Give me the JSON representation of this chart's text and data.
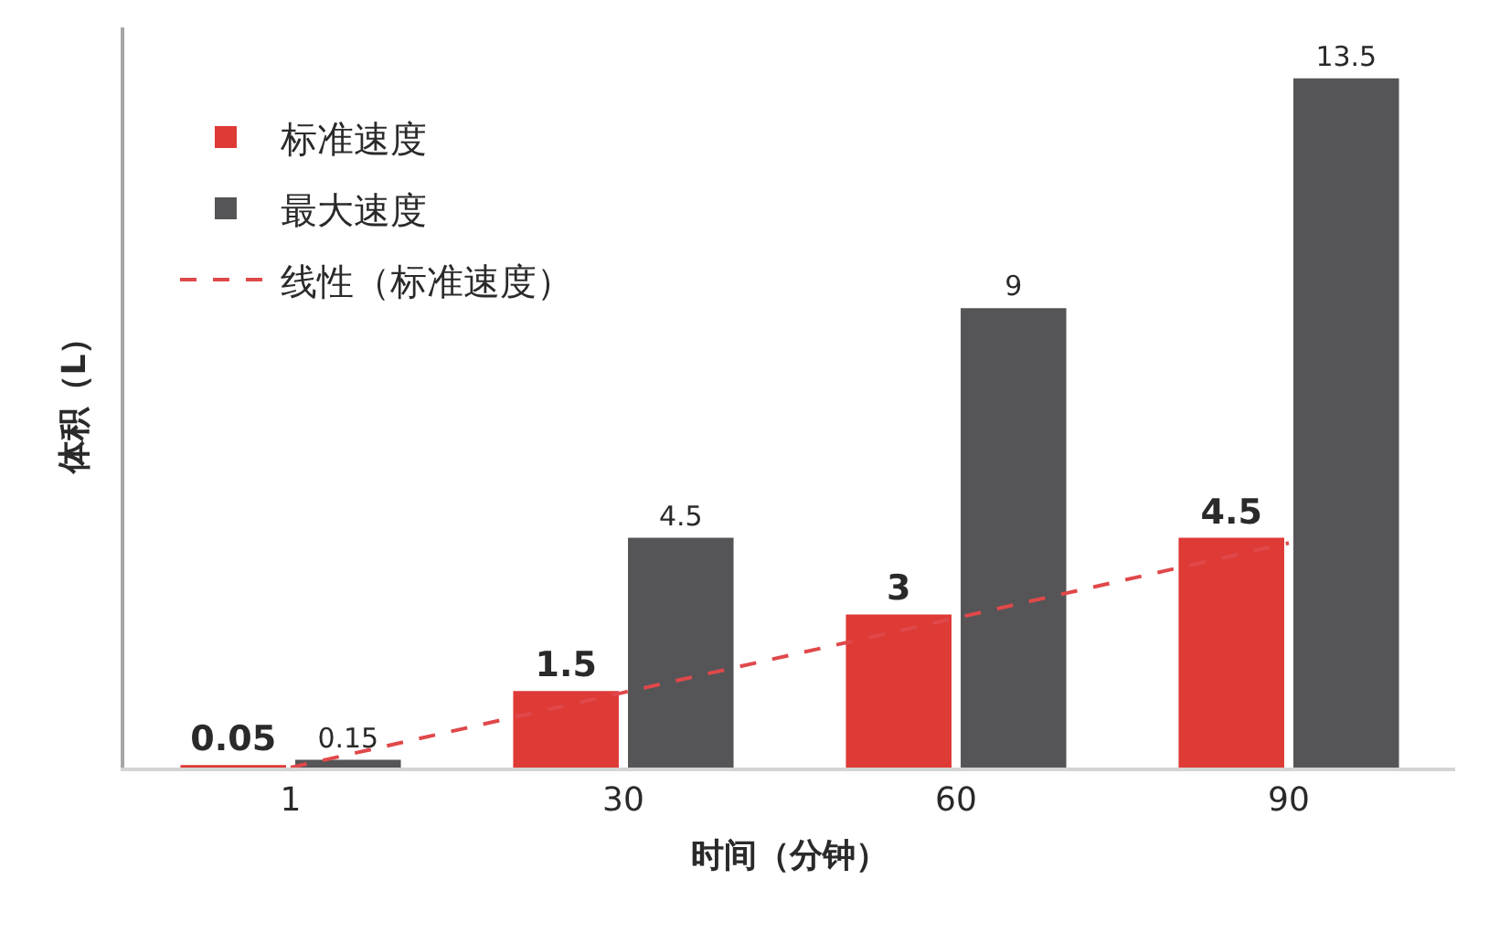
{
  "chart_data": {
    "type": "bar",
    "xlabel": "时间（分钟）",
    "ylabel": "体积（L）",
    "categories": [
      "1",
      "30",
      "60",
      "90"
    ],
    "series": [
      {
        "name": "标准速度",
        "color": "#de3a36",
        "values": [
          0.05,
          1.5,
          3,
          4.5
        ],
        "value_labels": [
          "0.05",
          "1.5",
          "3",
          "4.5"
        ]
      },
      {
        "name": "最大速度",
        "color": "#555558",
        "values": [
          0.15,
          4.5,
          9,
          13.5
        ],
        "value_labels": [
          "0.15",
          "4.5",
          "9",
          "13.5"
        ]
      },
      {
        "name": "线性（标准速度）",
        "type": "line",
        "line_style": "dashed",
        "color": "#e0484a",
        "values": [
          0,
          1.47,
          2.93,
          4.4
        ]
      }
    ],
    "ylim": [
      0,
      14.5
    ],
    "tick_labels": "x",
    "legend": "top left"
  }
}
